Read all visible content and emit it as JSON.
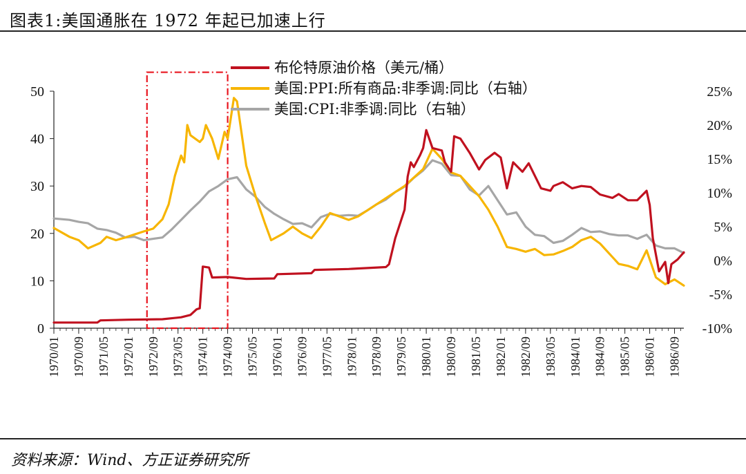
{
  "header": {
    "title": "图表1:美国通胀在 1972 年起已加速上行"
  },
  "footer": {
    "source": "资料来源：Wind、方正证券研究所"
  },
  "chart_data": {
    "type": "line",
    "title": "图表1:美国通胀在 1972 年起已加速上行",
    "left_axis": {
      "min": 0,
      "max": 50,
      "ticks": [
        0,
        10,
        20,
        30,
        40,
        50
      ]
    },
    "right_axis": {
      "min": -10,
      "max": 25,
      "ticks": [
        -10,
        -5,
        0,
        5,
        10,
        15,
        20,
        25
      ],
      "format": "percent"
    },
    "x_range": [
      "1970/01",
      "1986/12"
    ],
    "x_ticks": [
      "1970/01",
      "1970/09",
      "1971/05",
      "1972/01",
      "1972/09",
      "1973/05",
      "1974/01",
      "1974/09",
      "1975/05",
      "1976/01",
      "1976/09",
      "1977/05",
      "1978/01",
      "1978/09",
      "1979/05",
      "1980/01",
      "1980/09",
      "1981/05",
      "1982/01",
      "1982/09",
      "1983/05",
      "1984/01",
      "1984/09",
      "1985/05",
      "1986/01",
      "1986/09"
    ],
    "tick_labels": {
      "left": [
        "0",
        "10",
        "20",
        "30",
        "40",
        "50"
      ],
      "right": [
        "-10%",
        "-5%",
        "0%",
        "5%",
        "10%",
        "15%",
        "20%",
        "25%"
      ]
    },
    "highlight_box": {
      "from": "1972/07",
      "to": "1974/09",
      "ymin": 0,
      "ymax": 54,
      "color": "#e8141e",
      "style": "dash-dot"
    },
    "legend_position": "top-center",
    "series": [
      {
        "name": "布伦特原油价格（美元/桶）",
        "axis": "left",
        "color": "#c0111f",
        "points": [
          [
            "1970/01",
            1.2
          ],
          [
            "1971/03",
            1.2
          ],
          [
            "1971/04",
            1.65
          ],
          [
            "1972/01",
            1.8
          ],
          [
            "1972/12",
            1.9
          ],
          [
            "1973/06",
            2.3
          ],
          [
            "1973/09",
            2.8
          ],
          [
            "1973/11",
            4.0
          ],
          [
            "1973/12",
            4.2
          ],
          [
            "1974/01",
            13.0
          ],
          [
            "1974/03",
            12.8
          ],
          [
            "1974/04",
            10.7
          ],
          [
            "1974/09",
            10.8
          ],
          [
            "1975/03",
            10.4
          ],
          [
            "1975/12",
            10.5
          ],
          [
            "1976/01",
            11.4
          ],
          [
            "1976/12",
            11.6
          ],
          [
            "1977/01",
            12.3
          ],
          [
            "1977/12",
            12.5
          ],
          [
            "1978/12",
            12.9
          ],
          [
            "1979/01",
            13.5
          ],
          [
            "1979/03",
            19.0
          ],
          [
            "1979/05",
            23.0
          ],
          [
            "1979/06",
            25.0
          ],
          [
            "1979/07",
            32.0
          ],
          [
            "1979/08",
            35.0
          ],
          [
            "1979/09",
            34.0
          ],
          [
            "1979/11",
            36.5
          ],
          [
            "1979/12",
            38.0
          ],
          [
            "1980/01",
            41.8
          ],
          [
            "1980/03",
            38.0
          ],
          [
            "1980/06",
            37.5
          ],
          [
            "1980/07",
            35.0
          ],
          [
            "1980/09",
            33.0
          ],
          [
            "1980/10",
            40.5
          ],
          [
            "1980/12",
            40.0
          ],
          [
            "1981/03",
            37.0
          ],
          [
            "1981/06",
            33.5
          ],
          [
            "1981/08",
            35.5
          ],
          [
            "1981/11",
            37.0
          ],
          [
            "1982/01",
            36.0
          ],
          [
            "1982/03",
            29.5
          ],
          [
            "1982/05",
            35.0
          ],
          [
            "1982/08",
            33.0
          ],
          [
            "1982/10",
            34.8
          ],
          [
            "1983/02",
            29.5
          ],
          [
            "1983/05",
            29.0
          ],
          [
            "1983/06",
            30.0
          ],
          [
            "1983/09",
            30.8
          ],
          [
            "1983/12",
            29.5
          ],
          [
            "1984/03",
            30.0
          ],
          [
            "1984/06",
            29.8
          ],
          [
            "1984/09",
            28.2
          ],
          [
            "1985/01",
            27.5
          ],
          [
            "1985/03",
            28.3
          ],
          [
            "1985/06",
            27.0
          ],
          [
            "1985/09",
            27.0
          ],
          [
            "1985/12",
            29.0
          ],
          [
            "1986/01",
            26.0
          ],
          [
            "1986/02",
            19.0
          ],
          [
            "1986/04",
            12.0
          ],
          [
            "1986/06",
            14.0
          ],
          [
            "1986/07",
            9.5
          ],
          [
            "1986/08",
            13.5
          ],
          [
            "1986/10",
            14.5
          ],
          [
            "1986/12",
            16.0
          ]
        ]
      },
      {
        "name": "美国:PPI:所有商品:非季调:同比（右轴）",
        "axis": "right",
        "color": "#f7b500",
        "points": [
          [
            "1970/01",
            4.8
          ],
          [
            "1970/06",
            3.5
          ],
          [
            "1970/09",
            3.0
          ],
          [
            "1970/12",
            1.8
          ],
          [
            "1971/04",
            2.6
          ],
          [
            "1971/06",
            3.5
          ],
          [
            "1971/09",
            3.0
          ],
          [
            "1971/12",
            3.4
          ],
          [
            "1972/06",
            4.3
          ],
          [
            "1972/09",
            4.7
          ],
          [
            "1972/12",
            6.1
          ],
          [
            "1973/02",
            8.3
          ],
          [
            "1973/04",
            12.5
          ],
          [
            "1973/06",
            15.5
          ],
          [
            "1973/07",
            14.5
          ],
          [
            "1973/08",
            20.0
          ],
          [
            "1973/09",
            18.5
          ],
          [
            "1973/12",
            17.5
          ],
          [
            "1974/01",
            18.0
          ],
          [
            "1974/02",
            20.0
          ],
          [
            "1974/04",
            18.0
          ],
          [
            "1974/06",
            15.0
          ],
          [
            "1974/08",
            19.0
          ],
          [
            "1974/09",
            18.0
          ],
          [
            "1974/11",
            24.0
          ],
          [
            "1974/12",
            23.5
          ],
          [
            "1975/03",
            14.0
          ],
          [
            "1975/06",
            9.5
          ],
          [
            "1975/09",
            5.5
          ],
          [
            "1975/11",
            3.0
          ],
          [
            "1976/03",
            4.0
          ],
          [
            "1976/06",
            5.0
          ],
          [
            "1976/09",
            4.0
          ],
          [
            "1976/12",
            3.3
          ],
          [
            "1977/03",
            5.0
          ],
          [
            "1977/06",
            7.0
          ],
          [
            "1977/09",
            6.5
          ],
          [
            "1977/12",
            6.0
          ],
          [
            "1978/03",
            6.5
          ],
          [
            "1978/09",
            8.3
          ],
          [
            "1979/01",
            9.5
          ],
          [
            "1979/06",
            11.0
          ],
          [
            "1979/12",
            13.5
          ],
          [
            "1980/03",
            16.5
          ],
          [
            "1980/06",
            15.0
          ],
          [
            "1980/09",
            13.0
          ],
          [
            "1980/12",
            12.5
          ],
          [
            "1981/03",
            11.0
          ],
          [
            "1981/06",
            9.5
          ],
          [
            "1981/09",
            7.5
          ],
          [
            "1981/12",
            5.0
          ],
          [
            "1982/03",
            2.0
          ],
          [
            "1982/06",
            1.7
          ],
          [
            "1982/09",
            1.3
          ],
          [
            "1982/12",
            1.7
          ],
          [
            "1983/03",
            0.8
          ],
          [
            "1983/06",
            0.9
          ],
          [
            "1983/09",
            1.4
          ],
          [
            "1983/12",
            2.0
          ],
          [
            "1984/03",
            3.0
          ],
          [
            "1984/06",
            3.5
          ],
          [
            "1984/09",
            2.5
          ],
          [
            "1984/12",
            1.0
          ],
          [
            "1985/03",
            -0.5
          ],
          [
            "1985/06",
            -0.8
          ],
          [
            "1985/09",
            -1.3
          ],
          [
            "1985/12",
            1.5
          ],
          [
            "1986/03",
            -2.5
          ],
          [
            "1986/06",
            -3.5
          ],
          [
            "1986/09",
            -2.8
          ],
          [
            "1986/12",
            -3.7
          ]
        ]
      },
      {
        "name": "美国:CPI:非季调:同比（右轴）",
        "axis": "right",
        "color": "#a6a6a6",
        "points": [
          [
            "1970/01",
            6.2
          ],
          [
            "1970/06",
            6.0
          ],
          [
            "1970/09",
            5.7
          ],
          [
            "1970/12",
            5.5
          ],
          [
            "1971/03",
            4.7
          ],
          [
            "1971/06",
            4.5
          ],
          [
            "1971/09",
            4.1
          ],
          [
            "1971/12",
            3.4
          ],
          [
            "1972/03",
            3.5
          ],
          [
            "1972/06",
            3.0
          ],
          [
            "1972/09",
            3.2
          ],
          [
            "1972/12",
            3.4
          ],
          [
            "1973/03",
            4.6
          ],
          [
            "1973/06",
            6.0
          ],
          [
            "1973/09",
            7.4
          ],
          [
            "1973/12",
            8.7
          ],
          [
            "1974/03",
            10.2
          ],
          [
            "1974/06",
            11.0
          ],
          [
            "1974/09",
            12.0
          ],
          [
            "1974/12",
            12.3
          ],
          [
            "1975/03",
            10.5
          ],
          [
            "1975/06",
            9.4
          ],
          [
            "1975/09",
            7.9
          ],
          [
            "1975/12",
            6.9
          ],
          [
            "1976/03",
            6.1
          ],
          [
            "1976/06",
            5.4
          ],
          [
            "1976/09",
            5.5
          ],
          [
            "1976/12",
            4.9
          ],
          [
            "1977/03",
            6.4
          ],
          [
            "1977/06",
            6.9
          ],
          [
            "1977/09",
            6.6
          ],
          [
            "1977/12",
            6.7
          ],
          [
            "1978/03",
            6.6
          ],
          [
            "1978/06",
            7.4
          ],
          [
            "1978/09",
            8.3
          ],
          [
            "1978/12",
            9.0
          ],
          [
            "1979/03",
            10.1
          ],
          [
            "1979/06",
            10.9
          ],
          [
            "1979/09",
            12.2
          ],
          [
            "1979/12",
            13.3
          ],
          [
            "1980/03",
            14.8
          ],
          [
            "1980/06",
            14.3
          ],
          [
            "1980/09",
            12.6
          ],
          [
            "1980/12",
            12.5
          ],
          [
            "1981/03",
            10.5
          ],
          [
            "1981/06",
            9.6
          ],
          [
            "1981/09",
            11.0
          ],
          [
            "1981/12",
            8.9
          ],
          [
            "1982/03",
            6.8
          ],
          [
            "1982/06",
            7.1
          ],
          [
            "1982/09",
            5.0
          ],
          [
            "1982/12",
            3.8
          ],
          [
            "1983/03",
            3.6
          ],
          [
            "1983/06",
            2.6
          ],
          [
            "1983/09",
            2.9
          ],
          [
            "1983/12",
            3.8
          ],
          [
            "1984/03",
            4.8
          ],
          [
            "1984/06",
            4.2
          ],
          [
            "1984/09",
            4.3
          ],
          [
            "1984/12",
            3.9
          ],
          [
            "1985/03",
            3.7
          ],
          [
            "1985/06",
            3.7
          ],
          [
            "1985/09",
            3.2
          ],
          [
            "1985/12",
            3.8
          ],
          [
            "1986/03",
            2.2
          ],
          [
            "1986/06",
            1.8
          ],
          [
            "1986/09",
            1.8
          ],
          [
            "1986/12",
            1.1
          ]
        ]
      }
    ]
  }
}
